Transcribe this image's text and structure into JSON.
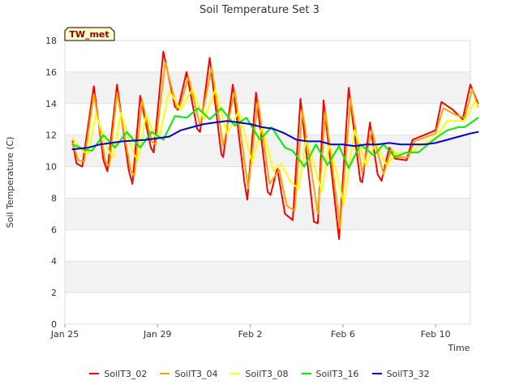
{
  "chart_data": {
    "type": "line",
    "title": "Soil Temperature Set 3",
    "xlabel": "Time",
    "ylabel": "Soil Temperature (C)",
    "ylim": [
      0,
      18
    ],
    "xlim": [
      "2024-01-25",
      "2024-02-11 12:00"
    ],
    "yticks": [
      0,
      2,
      4,
      6,
      8,
      10,
      12,
      14,
      16,
      18
    ],
    "xticks": [
      {
        "date": "2024-01-25",
        "label": "Jan 25"
      },
      {
        "date": "2024-01-29",
        "label": "Jan 29"
      },
      {
        "date": "2024-02-02",
        "label": "Feb 2"
      },
      {
        "date": "2024-02-06",
        "label": "Feb 6"
      },
      {
        "date": "2024-02-10",
        "label": "Feb 10"
      }
    ],
    "annotation": "TW_met",
    "grid": "horizontal bands",
    "legend_position": "bottom",
    "series": [
      {
        "name": "SoilT3_02",
        "color": "#ff0000",
        "points": [
          [
            "2024-01-25 08:00",
            11.6
          ],
          [
            "2024-01-25 12:00",
            10.2
          ],
          [
            "2024-01-25 18:00",
            10.0
          ],
          [
            "2024-01-26 06:00",
            15.1
          ],
          [
            "2024-01-26 16:00",
            10.4
          ],
          [
            "2024-01-26 20:00",
            9.7
          ],
          [
            "2024-01-27 06:00",
            15.2
          ],
          [
            "2024-01-27 18:00",
            9.8
          ],
          [
            "2024-01-27 22:00",
            8.9
          ],
          [
            "2024-01-28 06:00",
            14.5
          ],
          [
            "2024-01-28 17:00",
            11.2
          ],
          [
            "2024-01-28 20:00",
            10.9
          ],
          [
            "2024-01-29 06:00",
            17.3
          ],
          [
            "2024-01-29 18:00",
            13.8
          ],
          [
            "2024-01-29 21:00",
            13.6
          ],
          [
            "2024-01-30 06:00",
            16.0
          ],
          [
            "2024-01-30 17:00",
            12.4
          ],
          [
            "2024-01-30 20:00",
            12.2
          ],
          [
            "2024-01-31 06:00",
            16.9
          ],
          [
            "2024-01-31 18:00",
            10.8
          ],
          [
            "2024-01-31 20:00",
            10.6
          ],
          [
            "2024-02-01 06:00",
            15.2
          ],
          [
            "2024-02-01 18:00",
            9.0
          ],
          [
            "2024-02-01 21:00",
            7.9
          ],
          [
            "2024-02-02 06:00",
            14.7
          ],
          [
            "2024-02-02 18:00",
            8.4
          ],
          [
            "2024-02-02 21:00",
            8.2
          ],
          [
            "2024-02-03 04:00",
            9.9
          ],
          [
            "2024-02-03 12:00",
            7.0
          ],
          [
            "2024-02-03 20:00",
            6.6
          ],
          [
            "2024-02-04 04:00",
            14.3
          ],
          [
            "2024-02-04 18:00",
            6.5
          ],
          [
            "2024-02-04 22:00",
            6.4
          ],
          [
            "2024-02-05 04:00",
            14.2
          ],
          [
            "2024-02-05 20:00",
            5.4
          ],
          [
            "2024-02-06 06:00",
            15.0
          ],
          [
            "2024-02-06 18:00",
            9.1
          ],
          [
            "2024-02-06 20:00",
            9.0
          ],
          [
            "2024-02-07 04:00",
            12.8
          ],
          [
            "2024-02-07 12:00",
            9.5
          ],
          [
            "2024-02-07 16:00",
            9.1
          ],
          [
            "2024-02-08 00:00",
            11.2
          ],
          [
            "2024-02-08 06:00",
            10.5
          ],
          [
            "2024-02-08 18:00",
            10.4
          ],
          [
            "2024-02-09 00:00",
            11.7
          ],
          [
            "2024-02-09 12:00",
            12.0
          ],
          [
            "2024-02-10 00:00",
            12.3
          ],
          [
            "2024-02-10 06:00",
            14.1
          ],
          [
            "2024-02-10 18:00",
            13.6
          ],
          [
            "2024-02-11 04:00",
            13.0
          ],
          [
            "2024-02-11 12:00",
            15.2
          ],
          [
            "2024-02-11 20:00",
            14.0
          ]
        ]
      },
      {
        "name": "SoilT3_04",
        "color": "#ffa500",
        "points": [
          [
            "2024-01-25 08:00",
            11.5
          ],
          [
            "2024-01-25 14:00",
            10.4
          ],
          [
            "2024-01-25 20:00",
            10.3
          ],
          [
            "2024-01-26 06:00",
            14.6
          ],
          [
            "2024-01-26 18:00",
            10.3
          ],
          [
            "2024-01-26 22:00",
            10.0
          ],
          [
            "2024-01-27 06:00",
            14.7
          ],
          [
            "2024-01-27 20:00",
            9.8
          ],
          [
            "2024-01-28 00:00",
            9.4
          ],
          [
            "2024-01-28 08:00",
            14.2
          ],
          [
            "2024-01-28 18:00",
            11.6
          ],
          [
            "2024-01-28 22:00",
            11.4
          ],
          [
            "2024-01-29 08:00",
            16.6
          ],
          [
            "2024-01-29 20:00",
            13.7
          ],
          [
            "2024-01-29 23:00",
            13.8
          ],
          [
            "2024-01-30 08:00",
            15.7
          ],
          [
            "2024-01-30 20:00",
            12.6
          ],
          [
            "2024-01-31 08:00",
            16.3
          ],
          [
            "2024-01-31 20:00",
            11.3
          ],
          [
            "2024-02-01 08:00",
            14.8
          ],
          [
            "2024-02-01 22:00",
            8.6
          ],
          [
            "2024-02-02 08:00",
            14.2
          ],
          [
            "2024-02-02 20:00",
            8.9
          ],
          [
            "2024-02-03 06:00",
            9.8
          ],
          [
            "2024-02-03 14:00",
            7.5
          ],
          [
            "2024-02-03 22:00",
            7.2
          ],
          [
            "2024-02-04 06:00",
            13.6
          ],
          [
            "2024-02-04 22:00",
            7.0
          ],
          [
            "2024-02-05 06:00",
            13.5
          ],
          [
            "2024-02-05 21:00",
            6.1
          ],
          [
            "2024-02-06 08:00",
            14.3
          ],
          [
            "2024-02-06 20:00",
            9.6
          ],
          [
            "2024-02-07 06:00",
            12.3
          ],
          [
            "2024-02-07 18:00",
            9.5
          ],
          [
            "2024-02-08 02:00",
            11.1
          ],
          [
            "2024-02-08 08:00",
            10.6
          ],
          [
            "2024-02-08 20:00",
            10.6
          ],
          [
            "2024-02-09 02:00",
            11.6
          ],
          [
            "2024-02-10 00:00",
            12.1
          ],
          [
            "2024-02-10 08:00",
            13.7
          ],
          [
            "2024-02-10 20:00",
            13.3
          ],
          [
            "2024-02-11 06:00",
            13.1
          ],
          [
            "2024-02-11 14:00",
            14.9
          ],
          [
            "2024-02-11 20:00",
            13.8
          ]
        ]
      },
      {
        "name": "SoilT3_08",
        "color": "#ffff00",
        "points": [
          [
            "2024-01-25 08:00",
            11.8
          ],
          [
            "2024-01-25 18:00",
            11.0
          ],
          [
            "2024-01-26 00:00",
            10.8
          ],
          [
            "2024-01-26 08:00",
            13.3
          ],
          [
            "2024-01-26 22:00",
            10.9
          ],
          [
            "2024-01-27 02:00",
            10.6
          ],
          [
            "2024-01-27 10:00",
            13.4
          ],
          [
            "2024-01-28 00:00",
            10.7
          ],
          [
            "2024-01-28 04:00",
            10.4
          ],
          [
            "2024-01-28 12:00",
            13.3
          ],
          [
            "2024-01-28 22:00",
            11.9
          ],
          [
            "2024-01-29 02:00",
            11.9
          ],
          [
            "2024-01-29 12:00",
            14.8
          ],
          [
            "2024-01-30 00:00",
            13.6
          ],
          [
            "2024-01-30 12:00",
            14.9
          ],
          [
            "2024-01-31 00:00",
            13.0
          ],
          [
            "2024-01-31 12:00",
            14.9
          ],
          [
            "2024-02-01 00:00",
            12.1
          ],
          [
            "2024-02-01 12:00",
            13.5
          ],
          [
            "2024-02-02 02:00",
            10.2
          ],
          [
            "2024-02-02 12:00",
            12.6
          ],
          [
            "2024-02-03 00:00",
            9.7
          ],
          [
            "2024-02-03 08:00",
            10.2
          ],
          [
            "2024-02-03 18:00",
            9.0
          ],
          [
            "2024-02-04 02:00",
            8.6
          ],
          [
            "2024-02-04 10:00",
            11.8
          ],
          [
            "2024-02-05 02:00",
            8.4
          ],
          [
            "2024-02-05 10:00",
            11.5
          ],
          [
            "2024-02-06 01:00",
            7.6
          ],
          [
            "2024-02-06 12:00",
            12.3
          ],
          [
            "2024-02-07 00:00",
            10.1
          ],
          [
            "2024-02-07 10:00",
            11.5
          ],
          [
            "2024-02-07 22:00",
            10.0
          ],
          [
            "2024-02-08 06:00",
            10.9
          ],
          [
            "2024-02-08 12:00",
            10.8
          ],
          [
            "2024-02-09 00:00",
            10.9
          ],
          [
            "2024-02-09 06:00",
            11.3
          ],
          [
            "2024-02-10 00:00",
            11.8
          ],
          [
            "2024-02-10 12:00",
            12.9
          ],
          [
            "2024-02-11 00:00",
            12.9
          ],
          [
            "2024-02-11 06:00",
            12.9
          ],
          [
            "2024-02-11 16:00",
            14.1
          ],
          [
            "2024-02-11 20:00",
            13.9
          ]
        ]
      },
      {
        "name": "SoilT3_16",
        "color": "#00ee00",
        "points": [
          [
            "2024-01-25 08:00",
            11.4
          ],
          [
            "2024-01-25 20:00",
            11.1
          ],
          [
            "2024-01-26 04:00",
            11.0
          ],
          [
            "2024-01-26 16:00",
            12.0
          ],
          [
            "2024-01-27 04:00",
            11.2
          ],
          [
            "2024-01-27 16:00",
            12.2
          ],
          [
            "2024-01-28 06:00",
            11.2
          ],
          [
            "2024-01-28 18:00",
            12.2
          ],
          [
            "2024-01-29 06:00",
            11.7
          ],
          [
            "2024-01-29 18:00",
            13.2
          ],
          [
            "2024-01-30 06:00",
            13.1
          ],
          [
            "2024-01-30 18:00",
            13.7
          ],
          [
            "2024-01-31 06:00",
            13.0
          ],
          [
            "2024-01-31 18:00",
            13.7
          ],
          [
            "2024-02-01 08:00",
            12.6
          ],
          [
            "2024-02-01 20:00",
            13.1
          ],
          [
            "2024-02-02 10:00",
            11.7
          ],
          [
            "2024-02-02 22:00",
            12.5
          ],
          [
            "2024-02-03 12:00",
            11.2
          ],
          [
            "2024-02-03 20:00",
            11.0
          ],
          [
            "2024-02-04 08:00",
            10.0
          ],
          [
            "2024-02-04 20:00",
            11.4
          ],
          [
            "2024-02-05 08:00",
            10.1
          ],
          [
            "2024-02-05 20:00",
            11.3
          ],
          [
            "2024-02-06 06:00",
            9.9
          ],
          [
            "2024-02-06 18:00",
            11.4
          ],
          [
            "2024-02-07 08:00",
            10.7
          ],
          [
            "2024-02-07 18:00",
            11.4
          ],
          [
            "2024-02-08 06:00",
            10.6
          ],
          [
            "2024-02-08 18:00",
            10.9
          ],
          [
            "2024-02-09 06:00",
            10.9
          ],
          [
            "2024-02-10 00:00",
            11.8
          ],
          [
            "2024-02-10 12:00",
            12.3
          ],
          [
            "2024-02-11 00:00",
            12.5
          ],
          [
            "2024-02-11 06:00",
            12.5
          ],
          [
            "2024-02-11 20:00",
            13.1
          ]
        ]
      },
      {
        "name": "SoilT3_32",
        "color": "#0000cc",
        "points": [
          [
            "2024-01-25 08:00",
            11.1
          ],
          [
            "2024-01-26 00:00",
            11.2
          ],
          [
            "2024-01-26 12:00",
            11.4
          ],
          [
            "2024-01-27 12:00",
            11.6
          ],
          [
            "2024-01-28 12:00",
            11.7
          ],
          [
            "2024-01-29 12:00",
            11.9
          ],
          [
            "2024-01-30 00:00",
            12.3
          ],
          [
            "2024-01-30 12:00",
            12.5
          ],
          [
            "2024-01-31 00:00",
            12.7
          ],
          [
            "2024-01-31 12:00",
            12.8
          ],
          [
            "2024-02-01 00:00",
            12.9
          ],
          [
            "2024-02-01 12:00",
            12.8
          ],
          [
            "2024-02-02 00:00",
            12.7
          ],
          [
            "2024-02-02 12:00",
            12.5
          ],
          [
            "2024-02-03 00:00",
            12.4
          ],
          [
            "2024-02-03 12:00",
            12.1
          ],
          [
            "2024-02-04 00:00",
            11.7
          ],
          [
            "2024-02-04 12:00",
            11.6
          ],
          [
            "2024-02-05 00:00",
            11.6
          ],
          [
            "2024-02-05 12:00",
            11.4
          ],
          [
            "2024-02-06 00:00",
            11.4
          ],
          [
            "2024-02-06 12:00",
            11.3
          ],
          [
            "2024-02-07 00:00",
            11.4
          ],
          [
            "2024-02-07 12:00",
            11.4
          ],
          [
            "2024-02-08 00:00",
            11.5
          ],
          [
            "2024-02-08 12:00",
            11.4
          ],
          [
            "2024-02-09 00:00",
            11.4
          ],
          [
            "2024-02-09 12:00",
            11.4
          ],
          [
            "2024-02-10 00:00",
            11.5
          ],
          [
            "2024-02-10 12:00",
            11.7
          ],
          [
            "2024-02-11 00:00",
            11.9
          ],
          [
            "2024-02-11 12:00",
            12.1
          ],
          [
            "2024-02-11 20:00",
            12.2
          ]
        ]
      }
    ]
  }
}
